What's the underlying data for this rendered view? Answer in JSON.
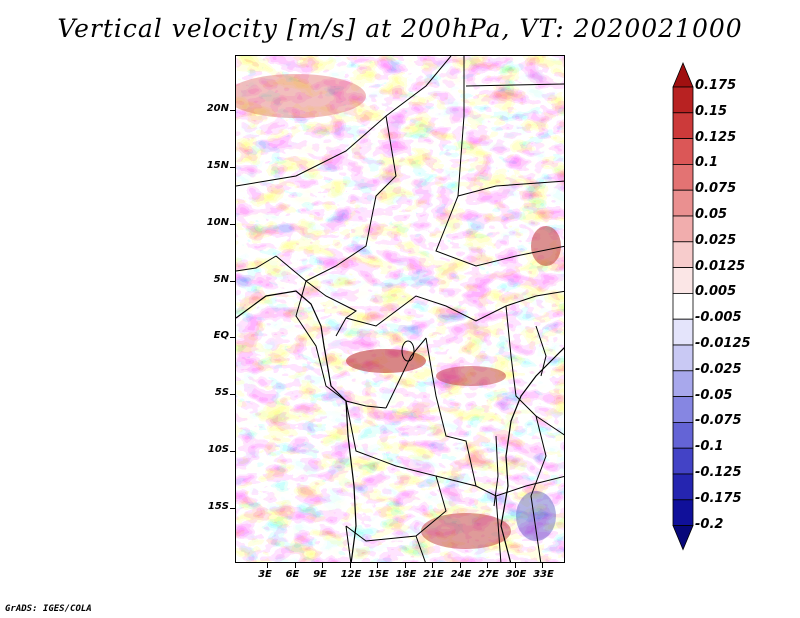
{
  "title": "Vertical velocity [m/s] at 200hPa, VT: 2020021000",
  "footer": "GrADS: IGES/COLA",
  "map": {
    "lon_range": [
      -0.5,
      35.5
    ],
    "lat_range": [
      -19.8,
      24.8
    ],
    "lat_ticks": [
      {
        "value": 20,
        "label": "20N"
      },
      {
        "value": 15,
        "label": "15N"
      },
      {
        "value": 10,
        "label": "10N"
      },
      {
        "value": 5,
        "label": "5N"
      },
      {
        "value": 0,
        "label": "EQ"
      },
      {
        "value": -5,
        "label": "5S"
      },
      {
        "value": -10,
        "label": "10S"
      },
      {
        "value": -15,
        "label": "15S"
      }
    ],
    "lon_ticks": [
      {
        "value": 3,
        "label": "3E"
      },
      {
        "value": 6,
        "label": "6E"
      },
      {
        "value": 9,
        "label": "9E"
      },
      {
        "value": 12,
        "label": "12E"
      },
      {
        "value": 15,
        "label": "15E"
      },
      {
        "value": 18,
        "label": "18E"
      },
      {
        "value": 21,
        "label": "21E"
      },
      {
        "value": 24,
        "label": "24E"
      },
      {
        "value": 27,
        "label": "27E"
      },
      {
        "value": 30,
        "label": "30E"
      },
      {
        "value": 33,
        "label": "33E"
      }
    ]
  },
  "colorbar": {
    "levels": [
      "0.175",
      "0.15",
      "0.125",
      "0.1",
      "0.075",
      "0.05",
      "0.025",
      "0.0125",
      "0.005",
      "-0.005",
      "-0.0125",
      "-0.025",
      "-0.05",
      "-0.075",
      "-0.1",
      "-0.125",
      "-0.175",
      "-0.2"
    ],
    "colors": [
      "#a01010",
      "#b82222",
      "#cc3a3a",
      "#db5757",
      "#e37373",
      "#ea9090",
      "#f1adad",
      "#f7cccc",
      "#fbe6e6",
      "#ffffff",
      "#e4e4fb",
      "#c9c9f4",
      "#a8a8ec",
      "#8686e2",
      "#6464d6",
      "#4343c6",
      "#2525b0",
      "#10109a",
      "#08087a"
    ]
  },
  "field_colors": {
    "positive": "#d94444",
    "negative": "#4a4ad8",
    "neutral": "#ffffff"
  }
}
